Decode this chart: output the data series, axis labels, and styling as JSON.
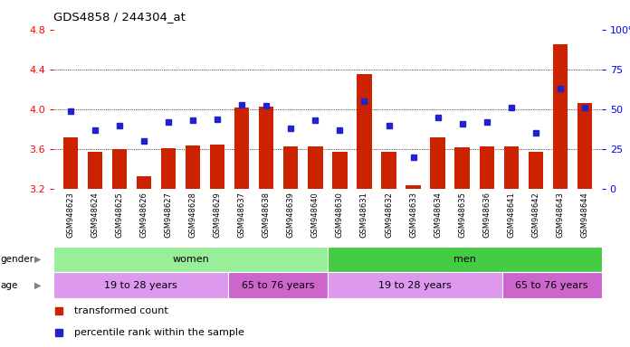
{
  "title": "GDS4858 / 244304_at",
  "samples": [
    "GSM948623",
    "GSM948624",
    "GSM948625",
    "GSM948626",
    "GSM948627",
    "GSM948628",
    "GSM948629",
    "GSM948637",
    "GSM948638",
    "GSM948639",
    "GSM948640",
    "GSM948630",
    "GSM948631",
    "GSM948632",
    "GSM948633",
    "GSM948634",
    "GSM948635",
    "GSM948636",
    "GSM948641",
    "GSM948642",
    "GSM948643",
    "GSM948644"
  ],
  "bar_values": [
    3.72,
    3.57,
    3.6,
    3.33,
    3.61,
    3.64,
    3.65,
    4.02,
    4.03,
    3.63,
    3.63,
    3.57,
    4.35,
    3.57,
    3.24,
    3.72,
    3.62,
    3.63,
    3.63,
    3.57,
    4.65,
    4.06
  ],
  "dot_values": [
    49,
    37,
    40,
    30,
    42,
    43,
    44,
    53,
    52,
    38,
    43,
    37,
    55,
    40,
    20,
    45,
    41,
    42,
    51,
    35,
    63,
    51
  ],
  "ylim": [
    3.2,
    4.8
  ],
  "y2lim": [
    0,
    100
  ],
  "yticks": [
    3.2,
    3.6,
    4.0,
    4.4,
    4.8
  ],
  "y2ticks": [
    0,
    25,
    50,
    75,
    100
  ],
  "bar_color": "#cc2200",
  "dot_color": "#2222cc",
  "bg_color": "#ffffff",
  "plot_bg": "#ffffff",
  "gender_groups": [
    {
      "text": "women",
      "start": 0,
      "end": 11,
      "color": "#99ee99"
    },
    {
      "text": "men",
      "start": 11,
      "end": 22,
      "color": "#44cc44"
    }
  ],
  "age_groups": [
    {
      "text": "19 to 28 years",
      "start": 0,
      "end": 7,
      "color": "#dd99ee"
    },
    {
      "text": "65 to 76 years",
      "start": 7,
      "end": 11,
      "color": "#cc66cc"
    },
    {
      "text": "19 to 28 years",
      "start": 11,
      "end": 18,
      "color": "#dd99ee"
    },
    {
      "text": "65 to 76 years",
      "start": 18,
      "end": 22,
      "color": "#cc66cc"
    }
  ],
  "legend": [
    {
      "label": "transformed count",
      "color": "#cc2200"
    },
    {
      "label": "percentile rank within the sample",
      "color": "#2222cc"
    }
  ]
}
